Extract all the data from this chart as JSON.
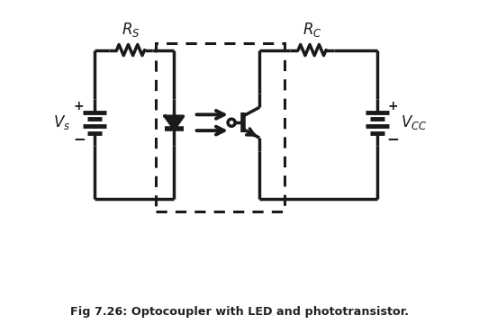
{
  "title": "Fig 7.26: Optocoupler with LED and phototransistor.",
  "bg_color": "#ffffff",
  "line_color": "#1a1a1a",
  "lw": 2.5,
  "figsize": [
    5.32,
    3.6
  ],
  "dpi": 100,
  "xlim": [
    0,
    10
  ],
  "ylim": [
    0,
    7.5
  ]
}
